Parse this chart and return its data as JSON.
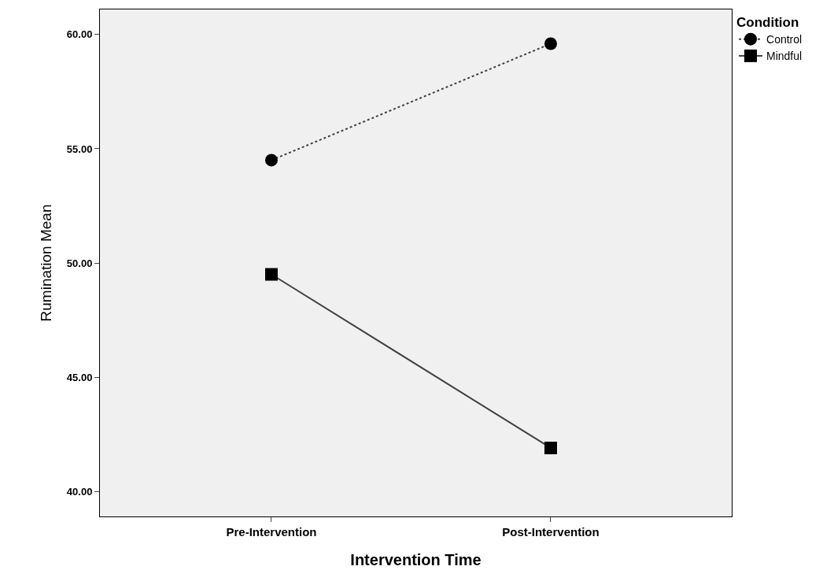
{
  "chart_data": {
    "type": "line",
    "xlabel": "Intervention Time",
    "ylabel": "Rumination Mean",
    "legend_title": "Condition",
    "categories": [
      "Pre-Intervention",
      "Post-Intervention"
    ],
    "series": [
      {
        "name": "Control",
        "color": "#000000",
        "values": [
          54.5,
          59.6
        ],
        "marker": "circle",
        "line_style": "dotted"
      },
      {
        "name": "Mindful",
        "color": "#000000",
        "values": [
          49.5,
          41.9
        ],
        "marker": "square",
        "line_style": "solid"
      }
    ],
    "ylim": [
      38.9,
      61.1
    ],
    "yticks": [
      {
        "value": 40,
        "label": "40.00"
      },
      {
        "value": 45,
        "label": "45.00"
      },
      {
        "value": 50,
        "label": "50.00"
      },
      {
        "value": 55,
        "label": "55.00"
      },
      {
        "value": 60,
        "label": "60.00"
      }
    ],
    "grid": false,
    "legend": "top right"
  }
}
